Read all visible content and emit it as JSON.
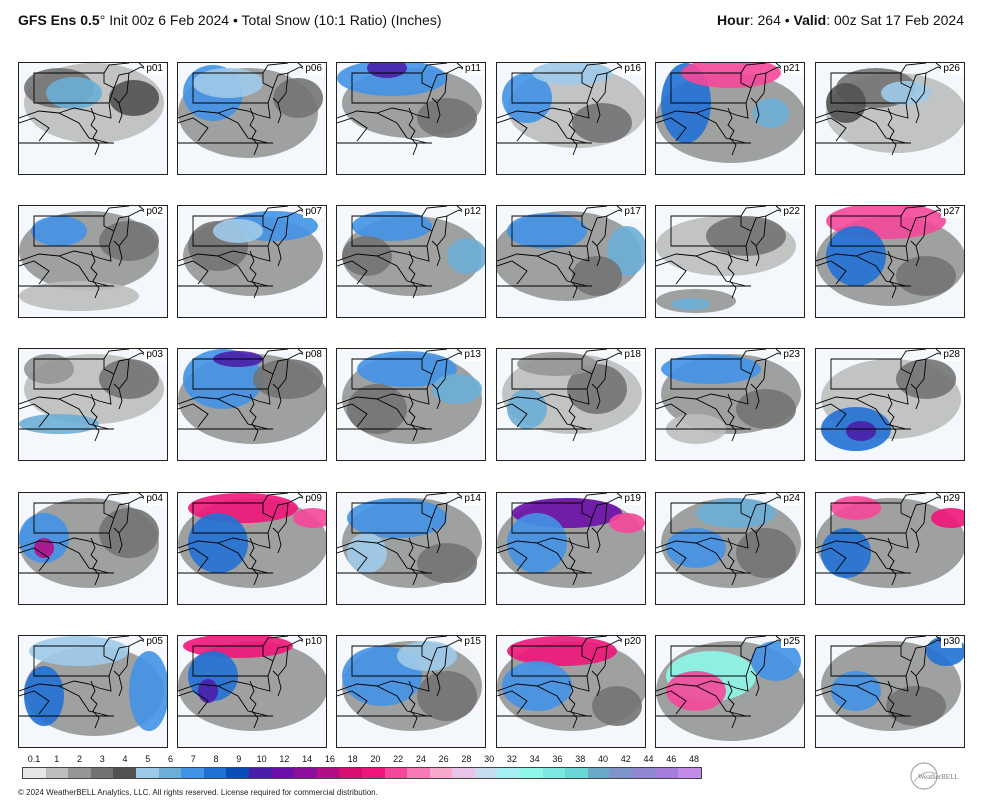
{
  "header": {
    "model": "GFS Ens 0.5",
    "degree": "°",
    "init": " Init 00z 6 Feb 2024",
    "bullet": " • ",
    "product": "Total Snow (10:1 Ratio) (Inches)",
    "hour_label": "Hour",
    "hour_value": ": 264",
    "valid_label": "Valid",
    "valid_value": ": 00z Sat 17 Feb 2024"
  },
  "panels": [
    {
      "label": "p01"
    },
    {
      "label": "p06"
    },
    {
      "label": "p11"
    },
    {
      "label": "p16"
    },
    {
      "label": "p21"
    },
    {
      "label": "p26"
    },
    {
      "label": "p02"
    },
    {
      "label": "p07"
    },
    {
      "label": "p12"
    },
    {
      "label": "p17"
    },
    {
      "label": "p22"
    },
    {
      "label": "p27"
    },
    {
      "label": "p03"
    },
    {
      "label": "p08"
    },
    {
      "label": "p13"
    },
    {
      "label": "p18"
    },
    {
      "label": "p23"
    },
    {
      "label": "p28"
    },
    {
      "label": "p04"
    },
    {
      "label": "p09"
    },
    {
      "label": "p14"
    },
    {
      "label": "p19"
    },
    {
      "label": "p24"
    },
    {
      "label": "p29"
    },
    {
      "label": "p05"
    },
    {
      "label": "p10"
    },
    {
      "label": "p15"
    },
    {
      "label": "p20"
    },
    {
      "label": "p25"
    },
    {
      "label": "p30"
    }
  ],
  "colorbar": {
    "labels": [
      "0.1",
      "1",
      "2",
      "3",
      "4",
      "5",
      "6",
      "7",
      "8",
      "9",
      "10",
      "12",
      "14",
      "16",
      "18",
      "20",
      "22",
      "24",
      "26",
      "28",
      "30",
      "32",
      "34",
      "36",
      "38",
      "40",
      "42",
      "44",
      "46",
      "48"
    ],
    "colors": [
      "#e6e6e6",
      "#bdbdbd",
      "#969696",
      "#737373",
      "#525252",
      "#9ecae9",
      "#6baed6",
      "#4292e6",
      "#2171d5",
      "#0c4cb8",
      "#4a1fa8",
      "#6a0fa8",
      "#8a0f9a",
      "#b40e86",
      "#d90e72",
      "#f0157a",
      "#f5479a",
      "#f77ab4",
      "#f9a8cd",
      "#e8c4e8",
      "#c7dcef",
      "#a6eff4",
      "#8ff7e8",
      "#7de8e0",
      "#69d6d6",
      "#6aa8c8",
      "#7e93c8",
      "#9087d2",
      "#a47ddc",
      "#c48ae8"
    ]
  },
  "footer": "© 2024 WeatherBELL Analytics, LLC. All rights reserved. License required for commercial distribution.",
  "logo_text": "WeatherBELL"
}
